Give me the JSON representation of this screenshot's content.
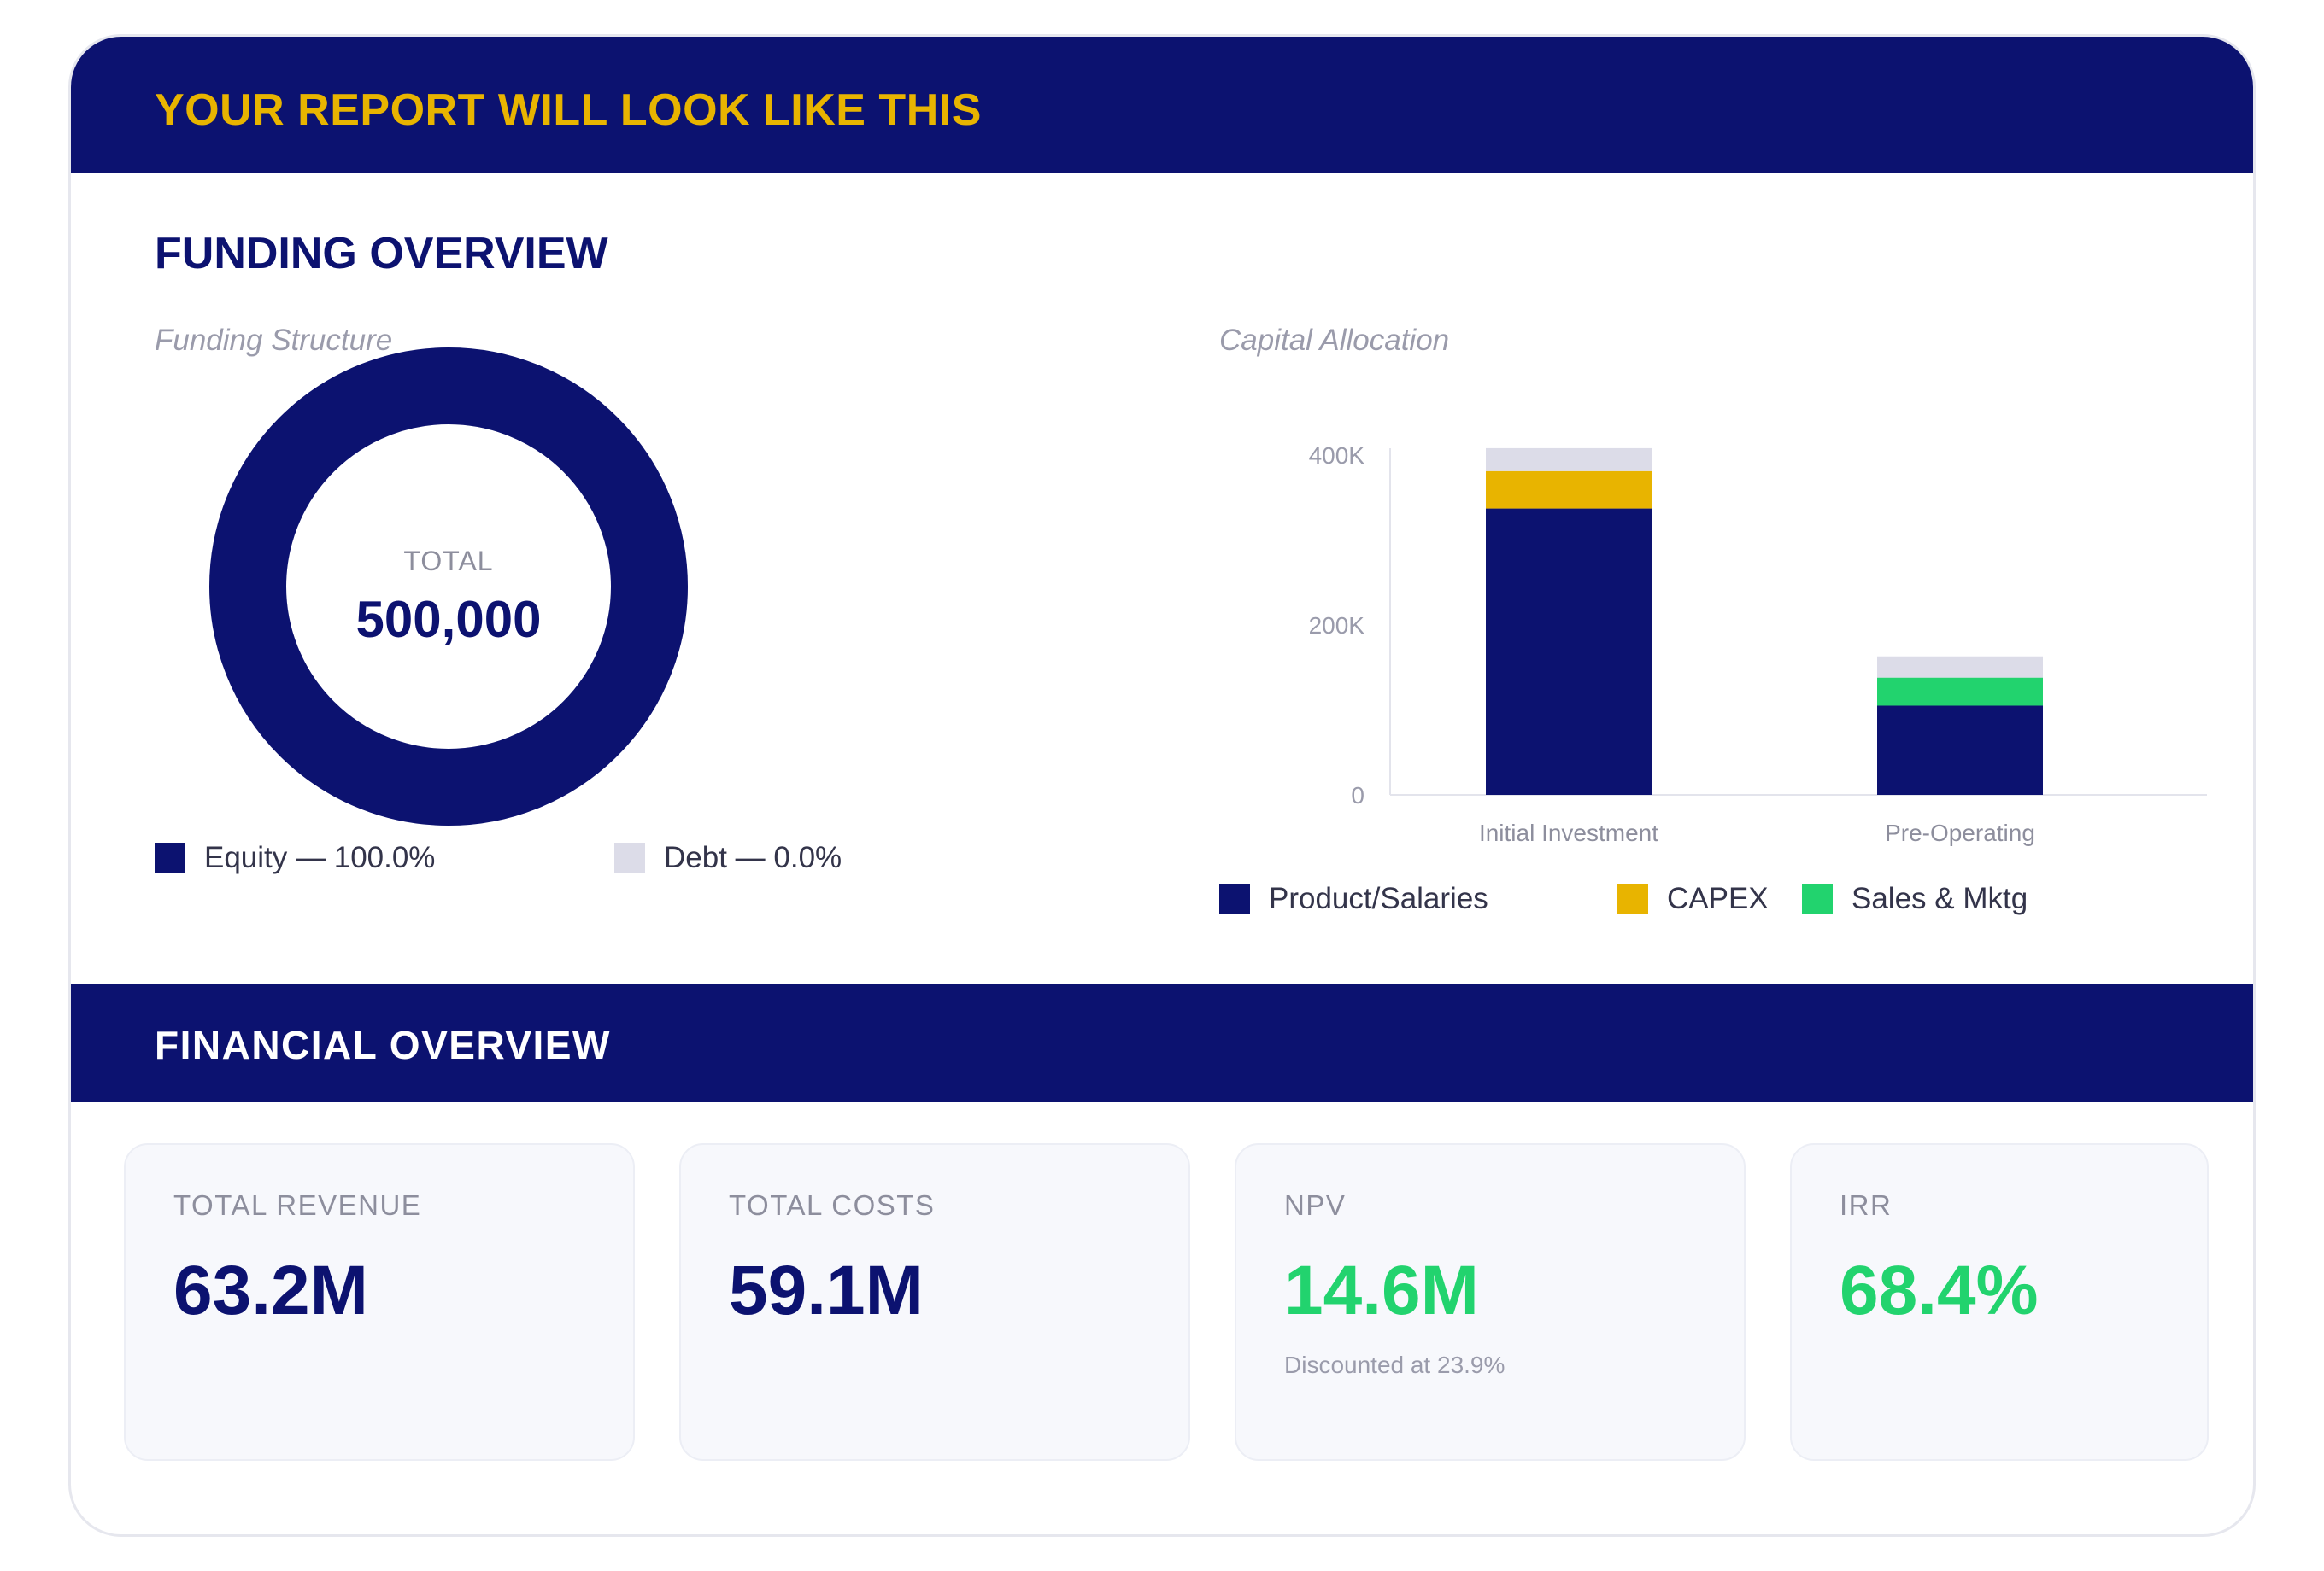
{
  "header": {
    "title": "YOUR REPORT WILL LOOK LIKE THIS"
  },
  "funding": {
    "title": "FUNDING OVERVIEW",
    "structure_label": "Funding Structure",
    "allocation_label": "Capital Allocation"
  },
  "financial": {
    "title": "FINANCIAL OVERVIEW",
    "kpis": [
      {
        "label": "TOTAL REVENUE",
        "value": "63.2M",
        "note": ""
      },
      {
        "label": "TOTAL COSTS",
        "value": "59.1M",
        "note": ""
      },
      {
        "label": "NPV",
        "value": "14.6M",
        "note": "Discounted at 23.9%"
      },
      {
        "label": "IRR",
        "value": "68.4%",
        "note": ""
      }
    ]
  },
  "colors": {
    "navy": "#0c1270",
    "gold": "#e8b400",
    "green": "#22d36e",
    "light": "#dcdce8"
  },
  "chart_data": [
    {
      "type": "pie",
      "variant": "donut",
      "title": "Funding Structure",
      "center_label": "TOTAL",
      "center_value": "500,000",
      "slices": [
        {
          "name": "Equity",
          "value": 100.0,
          "label": "Equity — 100.0%",
          "color": "#0c1270"
        },
        {
          "name": "Debt",
          "value": 0.0,
          "label": "Debt — 0.0%",
          "color": "#dcdce8"
        }
      ]
    },
    {
      "type": "bar",
      "stacked": true,
      "title": "Capital Allocation",
      "categories": [
        "Initial Investment",
        "Pre-Operating"
      ],
      "yticks": [
        {
          "value": 0,
          "label": "0"
        },
        {
          "value": 200000,
          "label": "200K"
        },
        {
          "value": 400000,
          "label": "400K"
        }
      ],
      "ylim": [
        0,
        430000
      ],
      "series": [
        {
          "name": "Product/Salaries",
          "color": "#0c1270",
          "values": [
            337000,
            105000
          ]
        },
        {
          "name": "Sales & Mktg",
          "color": "#22d36e",
          "values": [
            0,
            33000
          ]
        },
        {
          "name": "CAPEX",
          "color": "#e8b400",
          "values": [
            44000,
            0
          ]
        },
        {
          "name": "",
          "color": "#dcdce8",
          "values": [
            27000,
            25000
          ]
        }
      ],
      "legend": [
        "Product/Salaries",
        "CAPEX",
        "Sales & Mktg"
      ],
      "grid": false
    }
  ]
}
